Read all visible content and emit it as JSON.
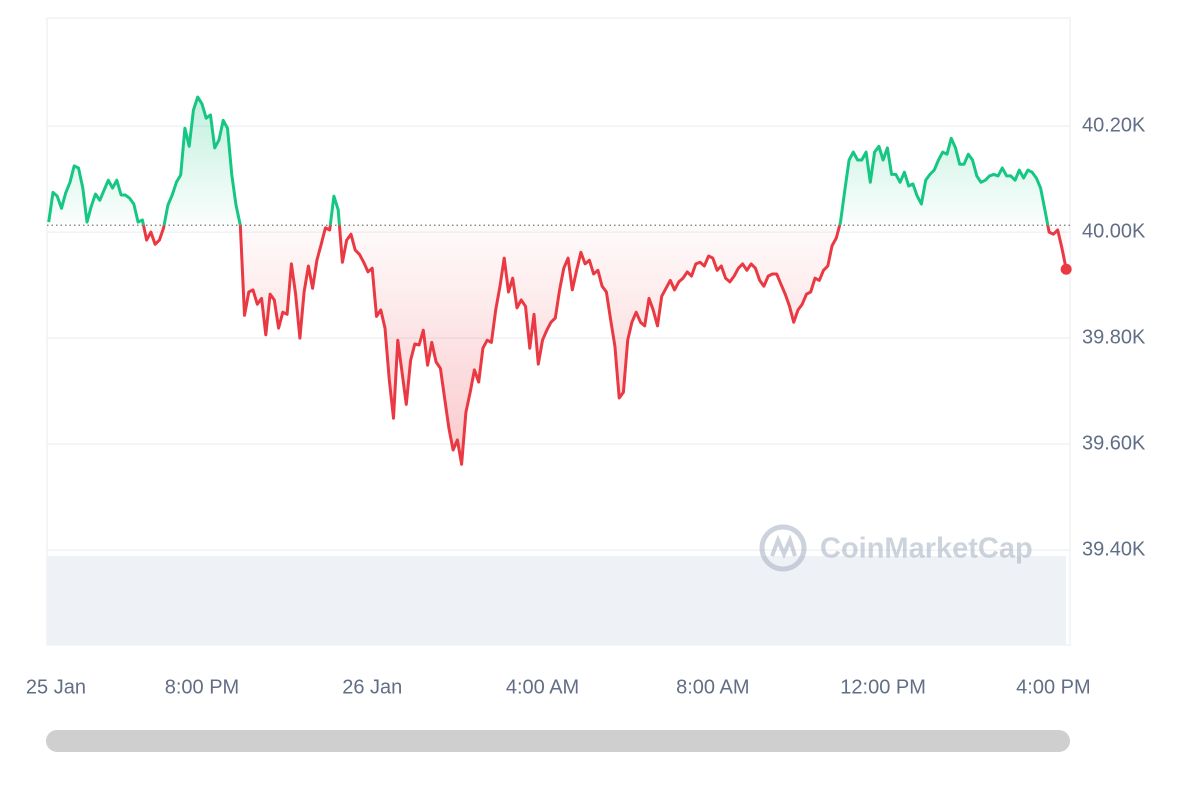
{
  "chart_data": {
    "type": "line",
    "watermark": "CoinMarketCap",
    "up_color": "#16c784",
    "down_color": "#ea3943",
    "baseline": 40013,
    "grid": true,
    "xlim": [
      16.36,
      40.39
    ],
    "xticks": [
      {
        "value": 16.57,
        "label": "25 Jan"
      },
      {
        "value": 20,
        "label": "8:00 PM"
      },
      {
        "value": 24,
        "label": "26 Jan"
      },
      {
        "value": 28,
        "label": "4:00 AM"
      },
      {
        "value": 32,
        "label": "8:00 AM"
      },
      {
        "value": 36,
        "label": "12:00 PM"
      },
      {
        "value": 40,
        "label": "4:00 PM"
      }
    ],
    "ylim": [
      39221,
      40404
    ],
    "yticks": [
      {
        "value": 39400,
        "label": "39.40K"
      },
      {
        "value": 39600,
        "label": "39.60K"
      },
      {
        "value": 39800,
        "label": "39.80K"
      },
      {
        "value": 40000,
        "label": "40.00K"
      },
      {
        "value": 40200,
        "label": "40.20K"
      }
    ],
    "x": [
      16.4,
      16.5,
      16.6,
      16.7,
      16.8,
      16.9,
      17,
      17.1,
      17.2,
      17.3,
      17.4,
      17.5,
      17.6,
      17.7,
      17.8,
      17.9,
      18,
      18.1,
      18.2,
      18.3,
      18.4,
      18.5,
      18.6,
      18.7,
      18.8,
      18.9,
      19,
      19.1,
      19.2,
      19.3,
      19.4,
      19.5,
      19.6,
      19.7,
      19.8,
      19.9,
      20,
      20.1,
      20.2,
      20.3,
      20.4,
      20.5,
      20.6,
      20.7,
      20.8,
      20.9,
      21,
      21.1,
      21.2,
      21.3,
      21.4,
      21.5,
      21.6,
      21.7,
      21.8,
      21.9,
      22,
      22.1,
      22.2,
      22.3,
      22.4,
      22.5,
      22.6,
      22.7,
      22.8,
      22.9,
      23,
      23.1,
      23.2,
      23.3,
      23.4,
      23.5,
      23.6,
      23.7,
      23.8,
      23.9,
      24,
      24.1,
      24.2,
      24.3,
      24.4,
      24.5,
      24.6,
      24.7,
      24.8,
      24.9,
      25,
      25.1,
      25.2,
      25.3,
      25.4,
      25.5,
      25.6,
      25.7,
      25.8,
      25.9,
      26,
      26.1,
      26.2,
      26.3,
      26.4,
      26.5,
      26.6,
      26.7,
      26.8,
      26.9,
      27,
      27.1,
      27.2,
      27.3,
      27.4,
      27.5,
      27.6,
      27.7,
      27.8,
      27.9,
      28,
      28.1,
      28.2,
      28.3,
      28.4,
      28.5,
      28.6,
      28.7,
      28.8,
      28.9,
      29,
      29.1,
      29.2,
      29.3,
      29.4,
      29.5,
      29.6,
      29.7,
      29.8,
      29.9,
      30,
      30.1,
      30.2,
      30.3,
      30.4,
      30.5,
      30.6,
      30.7,
      30.8,
      30.9,
      31,
      31.1,
      31.2,
      31.3,
      31.4,
      31.5,
      31.6,
      31.7,
      31.8,
      31.9,
      32,
      32.1,
      32.2,
      32.3,
      32.4,
      32.5,
      32.6,
      32.7,
      32.8,
      32.9,
      33,
      33.1,
      33.2,
      33.3,
      33.4,
      33.5,
      33.6,
      33.7,
      33.8,
      33.9,
      34,
      34.1,
      34.2,
      34.3,
      34.4,
      34.5,
      34.6,
      34.7,
      34.8,
      34.9,
      35,
      35.1,
      35.2,
      35.3,
      35.4,
      35.5,
      35.6,
      35.7,
      35.8,
      35.9,
      36,
      36.1,
      36.2,
      36.3,
      36.4,
      36.5,
      36.6,
      36.7,
      36.8,
      36.9,
      37,
      37.1,
      37.2,
      37.3,
      37.4,
      37.5,
      37.6,
      37.7,
      37.8,
      37.9,
      38,
      38.1,
      38.2,
      38.3,
      38.4,
      38.5,
      38.6,
      38.7,
      38.8,
      38.9,
      39,
      39.1,
      39.2,
      39.3,
      39.4,
      39.5,
      39.6,
      39.7,
      39.8,
      39.9,
      40,
      40.1,
      40.2,
      40.3
    ],
    "values": [
      40019,
      40075,
      40068,
      40045,
      40074,
      40094,
      40125,
      40121,
      40083,
      40019,
      40049,
      40072,
      40060,
      40079,
      40098,
      40083,
      40098,
      40070,
      40070,
      40064,
      40053,
      40019,
      40023,
      39985,
      40000,
      39977,
      39985,
      40008,
      40051,
      40070,
      40094,
      40108,
      40196,
      40162,
      40230,
      40255,
      40242,
      40215,
      40221,
      40159,
      40174,
      40211,
      40196,
      40108,
      40051,
      40013,
      39843,
      39887,
      39891,
      39864,
      39875,
      39806,
      39883,
      39872,
      39819,
      39849,
      39845,
      39940,
      39883,
      39800,
      39887,
      39936,
      39894,
      39947,
      39977,
      40008,
      40004,
      40068,
      40042,
      39943,
      39985,
      39996,
      39966,
      39958,
      39943,
      39925,
      39932,
      39841,
      39853,
      39819,
      39721,
      39649,
      39796,
      39736,
      39675,
      39758,
      39789,
      39787,
      39815,
      39749,
      39792,
      39755,
      39743,
      39687,
      39630,
      39589,
      39608,
      39562,
      39660,
      39698,
      39740,
      39717,
      39781,
      39796,
      39792,
      39853,
      39898,
      39951,
      39887,
      39913,
      39857,
      39872,
      39860,
      39781,
      39845,
      39751,
      39796,
      39815,
      39830,
      39838,
      39891,
      39932,
      39951,
      39891,
      39928,
      39962,
      39940,
      39947,
      39921,
      39928,
      39898,
      39887,
      39834,
      39785,
      39687,
      39698,
      39796,
      39830,
      39849,
      39830,
      39823,
      39875,
      39853,
      39823,
      39879,
      39894,
      39909,
      39891,
      39906,
      39913,
      39925,
      39917,
      39940,
      39943,
      39936,
      39955,
      39951,
      39928,
      39936,
      39913,
      39906,
      39917,
      39932,
      39940,
      39928,
      39940,
      39932,
      39909,
      39898,
      39917,
      39921,
      39921,
      39902,
      39883,
      39860,
      39830,
      39853,
      39864,
      39883,
      39887,
      39913,
      39909,
      39928,
      39936,
      39974,
      39989,
      40019,
      40079,
      40136,
      40151,
      40136,
      40136,
      40151,
      40094,
      40151,
      40162,
      40136,
      40159,
      40109,
      40109,
      40094,
      40113,
      40087,
      40091,
      40068,
      40053,
      40098,
      40109,
      40117,
      40136,
      40151,
      40147,
      40177,
      40159,
      40128,
      40128,
      40147,
      40136,
      40106,
      40094,
      40098,
      40106,
      40109,
      40106,
      40121,
      40106,
      40106,
      40098,
      40117,
      40102,
      40117,
      40113,
      40102,
      40083,
      40042,
      40000,
      39996,
      40004,
      39970,
      39930
    ]
  }
}
